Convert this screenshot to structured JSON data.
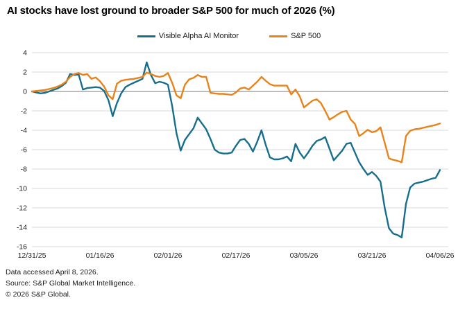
{
  "title": "AI stocks have lost ground to broader S&P 500 for much of 2026 (%)",
  "legend": {
    "items": [
      {
        "label": "Visible Alpha AI Monitor",
        "color": "#176e8c"
      },
      {
        "label": "S&P 500",
        "color": "#e8821a"
      }
    ]
  },
  "footer": {
    "lines": [
      "Data accessed April 8, 2026.",
      "Source: S&P Global Market Intelligence.",
      "© 2026 S&P Global."
    ]
  },
  "chart_data": {
    "type": "line",
    "title": "AI stocks have lost ground to broader S&P 500 for much of 2026 (%)",
    "xlabel": "",
    "ylabel": "",
    "x_unit": "calendar days since 12/31/25 (index 0 = 12/31/25, 96 = 04/06/26)",
    "x_tick_days": [
      0,
      16,
      32,
      48,
      64,
      80,
      96
    ],
    "x_tick_labels": [
      "12/31/25",
      "01/16/26",
      "02/01/26",
      "02/17/26",
      "03/05/26",
      "03/21/26",
      "04/06/26"
    ],
    "ylim": [
      -16,
      4
    ],
    "y_ticks": [
      4,
      2,
      0,
      -2,
      -4,
      -6,
      -8,
      -10,
      -12,
      -14,
      -16
    ],
    "grid": true,
    "zero_line": true,
    "legend_position": "top-center",
    "grid_color": "#d9d9d9",
    "zero_line_color": "#7a7a7a",
    "axis_text_color": "#1a1a1a",
    "series": [
      {
        "name": "Visible Alpha AI Monitor",
        "color": "#176e8c",
        "values": [
          0,
          -0.1,
          -0.2,
          -0.15,
          0,
          0.15,
          0.3,
          0.55,
          0.9,
          1.8,
          1.7,
          1.75,
          0.2,
          0.35,
          0.4,
          0.45,
          0.4,
          0.05,
          -0.9,
          -2.55,
          -1.2,
          -0.2,
          0.45,
          0.7,
          0.9,
          1.1,
          1.3,
          3.0,
          1.7,
          0.85,
          1.0,
          0.9,
          0.7,
          -1.5,
          -4.3,
          -6.1,
          -5.0,
          -4.4,
          -3.8,
          -2.7,
          -3.3,
          -3.9,
          -4.9,
          -6.0,
          -6.3,
          -6.4,
          -6.4,
          -6.3,
          -5.6,
          -5.0,
          -4.9,
          -5.4,
          -6.2,
          -5.2,
          -4.0,
          -5.5,
          -6.8,
          -7.0,
          -7.0,
          -6.9,
          -6.7,
          -7.2,
          -5.4,
          -6.3,
          -6.9,
          -6.3,
          -5.6,
          -5.1,
          -4.95,
          -4.7,
          -5.9,
          -7.1,
          -6.6,
          -6.1,
          -5.4,
          -5.3,
          -6.3,
          -7.3,
          -8.0,
          -8.6,
          -8.3,
          -8.7,
          -9.3,
          -12.0,
          -14.1,
          -14.65,
          -14.8,
          -15.05,
          -11.6,
          -9.9,
          -9.5,
          -9.4,
          -9.3,
          -9.15,
          -9.0,
          -8.9,
          -8.1
        ]
      },
      {
        "name": "S&P 500",
        "color": "#e8821a",
        "values": [
          0,
          0.05,
          0.1,
          0.15,
          0.25,
          0.35,
          0.5,
          0.7,
          1.0,
          1.5,
          1.8,
          1.9,
          1.7,
          1.8,
          1.3,
          1.45,
          1.05,
          0.5,
          -0.4,
          -0.8,
          0.8,
          1.1,
          1.2,
          1.25,
          1.3,
          1.4,
          1.5,
          1.95,
          1.8,
          1.6,
          1.5,
          1.6,
          1.9,
          0.9,
          -0.4,
          -0.7,
          0.7,
          1.25,
          1.4,
          1.7,
          1.5,
          1.5,
          -0.15,
          -0.2,
          -0.25,
          -0.25,
          -0.3,
          -0.35,
          -0.1,
          0.3,
          0.4,
          0.2,
          0.6,
          1.0,
          1.5,
          1.1,
          0.75,
          0.6,
          0.6,
          0.6,
          0.6,
          -0.3,
          0.2,
          -0.5,
          -1.65,
          -1.3,
          -0.95,
          -0.8,
          -1.2,
          -2.0,
          -2.9,
          -2.65,
          -2.35,
          -2.1,
          -2.0,
          -2.9,
          -3.35,
          -4.6,
          -4.3,
          -3.95,
          -4.2,
          -4.1,
          -3.7,
          -5.3,
          -6.9,
          -7.05,
          -7.15,
          -7.3,
          -4.6,
          -4.05,
          -3.9,
          -3.85,
          -3.75,
          -3.65,
          -3.55,
          -3.45,
          -3.3
        ]
      }
    ]
  }
}
